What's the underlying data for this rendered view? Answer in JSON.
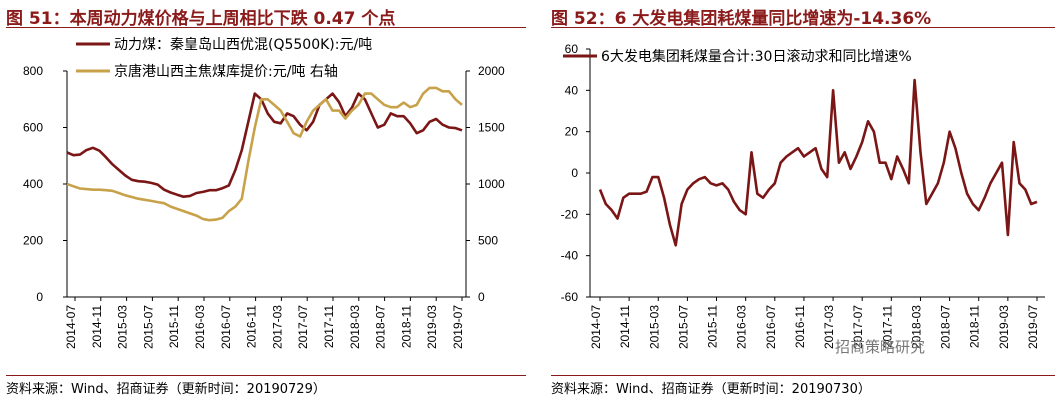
{
  "left": {
    "title": "图 51：本周动力煤价格与上周相比下跌 0.47 个点",
    "source": "资料来源：Wind、招商证券（更新时间：20190729）",
    "chart_data": {
      "type": "line",
      "x_ticks": [
        "2014-07",
        "2014-11",
        "2015-03",
        "2015-07",
        "2015-11",
        "2016-03",
        "2016-07",
        "2016-11",
        "2017-03",
        "2017-07",
        "2017-11",
        "2018-03",
        "2018-07",
        "2018-11",
        "2019-03",
        "2019-07"
      ],
      "y_left": {
        "ticks": [
          0,
          200,
          400,
          600,
          800
        ],
        "range": [
          0,
          800
        ]
      },
      "y_right": {
        "ticks": [
          0,
          500,
          1000,
          1500,
          2000
        ],
        "range": [
          0,
          2000
        ]
      },
      "grid": false,
      "legend": "top-left",
      "series": [
        {
          "name": "动力煤：秦皇岛山西优混(Q5500K):元/吨",
          "axis": "left",
          "color": "#7b1616",
          "values": [
            512,
            502,
            504,
            520,
            528,
            518,
            495,
            470,
            450,
            430,
            415,
            410,
            408,
            404,
            398,
            380,
            370,
            362,
            355,
            358,
            368,
            372,
            378,
            378,
            385,
            395,
            450,
            520,
            620,
            720,
            700,
            650,
            620,
            615,
            650,
            640,
            610,
            590,
            620,
            680,
            700,
            720,
            690,
            640,
            670,
            720,
            700,
            650,
            600,
            610,
            650,
            640,
            640,
            615,
            580,
            590,
            620,
            630,
            610,
            600,
            598,
            590
          ]
        },
        {
          "name": "京唐港山西主焦煤库提价:元/吨 右轴",
          "axis": "right",
          "color": "#c8a24a",
          "values": [
            1000,
            980,
            960,
            955,
            950,
            950,
            945,
            940,
            920,
            900,
            885,
            870,
            860,
            850,
            840,
            830,
            800,
            780,
            760,
            740,
            720,
            690,
            680,
            685,
            700,
            760,
            800,
            870,
            1200,
            1500,
            1750,
            1750,
            1700,
            1650,
            1550,
            1450,
            1420,
            1550,
            1650,
            1700,
            1750,
            1650,
            1650,
            1580,
            1650,
            1700,
            1800,
            1800,
            1750,
            1700,
            1680,
            1680,
            1720,
            1680,
            1700,
            1800,
            1850,
            1850,
            1820,
            1820,
            1750,
            1700
          ]
        }
      ]
    }
  },
  "right": {
    "title": "图 52：6 大发电集团耗煤量同比增速为-14.36%",
    "source": "资料来源：Wind、招商证券（更新时间：20190730）",
    "watermark": "招商策略研究",
    "chart_data": {
      "type": "line",
      "x_ticks": [
        "2014-07",
        "2014-11",
        "2015-03",
        "2015-07",
        "2015-11",
        "2016-03",
        "2016-07",
        "2016-11",
        "2017-03",
        "2017-07",
        "2017-11",
        "2018-03",
        "2018-07",
        "2018-11",
        "2019-03",
        "2019-07"
      ],
      "y": {
        "ticks": [
          -60,
          -40,
          -20,
          0,
          20,
          40,
          60
        ],
        "range": [
          -60,
          60
        ]
      },
      "grid": false,
      "legend": "top",
      "series": [
        {
          "name": "6大发电集团耗煤量合计:30日滚动求和同比增速%",
          "color": "#7b1616",
          "values": [
            -8,
            -15,
            -18,
            -22,
            -12,
            -10,
            -10,
            -10,
            -9,
            -2,
            -2,
            -12,
            -25,
            -35,
            -15,
            -8,
            -5,
            -3,
            -2,
            -5,
            -6,
            -5,
            -8,
            -14,
            -18,
            -20,
            10,
            -10,
            -12,
            -8,
            -5,
            5,
            8,
            10,
            12,
            8,
            10,
            12,
            2,
            -2,
            40,
            5,
            10,
            2,
            8,
            15,
            25,
            20,
            5,
            5,
            -3,
            8,
            2,
            -5,
            45,
            10,
            -15,
            -10,
            -5,
            5,
            20,
            12,
            0,
            -10,
            -15,
            -18,
            -12,
            -5,
            0,
            5,
            -30,
            15,
            -5,
            -8,
            -15,
            -14
          ]
        }
      ]
    }
  }
}
